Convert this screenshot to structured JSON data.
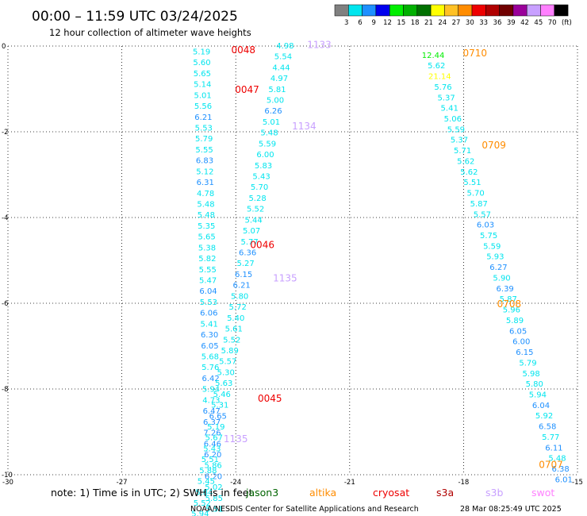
{
  "header": {
    "title": "00:00 – 11:59 UTC 03/24/2025",
    "subtitle": "12 hour collection of altimeter wave heights"
  },
  "legend": {
    "swatches": [
      {
        "label": "3",
        "color": "#808080"
      },
      {
        "label": "6",
        "color": "#00e5ee"
      },
      {
        "label": "9",
        "color": "#1e90ff"
      },
      {
        "label": "12",
        "color": "#0000ee"
      },
      {
        "label": "15",
        "color": "#00ee00"
      },
      {
        "label": "18",
        "color": "#00b000"
      },
      {
        "label": "21",
        "color": "#007000"
      },
      {
        "label": "24",
        "color": "#ffff00"
      },
      {
        "label": "27",
        "color": "#ffc125"
      },
      {
        "label": "30",
        "color": "#ff8c00"
      },
      {
        "label": "33",
        "color": "#ee0000"
      },
      {
        "label": "36",
        "color": "#b00000"
      },
      {
        "label": "39",
        "color": "#700000"
      },
      {
        "label": "42",
        "color": "#9a009a"
      },
      {
        "label": "45",
        "color": "#c8a0ff"
      },
      {
        "label": "70",
        "color": "#ff80ff"
      },
      {
        "label": "",
        "color": "#000000"
      }
    ],
    "unit": "(ft)"
  },
  "footer": {
    "note": "note:  1) Time is in UTC; 2) SWH is in feet",
    "missions": [
      {
        "label": "jason3",
        "color": "#006400"
      },
      {
        "label": "altika",
        "color": "#ff8c00"
      },
      {
        "label": "cryosat",
        "color": "#ee0000"
      },
      {
        "label": "s3a",
        "color": "#b00000"
      },
      {
        "label": "s3b",
        "color": "#c8a0ff"
      },
      {
        "label": "swot",
        "color": "#ff80ff"
      }
    ],
    "credit": "NOAA/NESDIS Center for Satellite Applications and Research",
    "timestamp": "28 Mar 08:25:49 UTC 2025"
  },
  "chart_data": {
    "type": "scatter",
    "title": "00:00 – 11:59 UTC 03/24/2025",
    "subtitle": "12 hour collection of altimeter wave heights",
    "xlabel": "",
    "ylabel": "",
    "xlim": [
      -30,
      -15
    ],
    "ylim": [
      -10,
      0
    ],
    "x_ticks": [
      "-30",
      "-27",
      "-24",
      "-21",
      "-18",
      "-15"
    ],
    "y_ticks": [
      "0",
      "-2",
      "-4",
      "-6",
      "-8",
      "-10"
    ],
    "grid": true,
    "labels": [
      {
        "x": -23.8,
        "y": -0.07,
        "text": "0048",
        "color": "#ee0000",
        "kind": "time"
      },
      {
        "x": -23.7,
        "y": -1.0,
        "text": "0047",
        "color": "#ee0000",
        "kind": "time"
      },
      {
        "x": -23.3,
        "y": -4.62,
        "text": "0046",
        "color": "#ee0000",
        "kind": "time"
      },
      {
        "x": -23.1,
        "y": -8.2,
        "text": "0045",
        "color": "#ee0000",
        "kind": "time"
      },
      {
        "x": -21.8,
        "y": 0.05,
        "text": "1133",
        "color": "#c8a0ff",
        "kind": "time"
      },
      {
        "x": -22.2,
        "y": -1.85,
        "text": "1134",
        "color": "#c8a0ff",
        "kind": "time"
      },
      {
        "x": -22.7,
        "y": -5.4,
        "text": "1135",
        "color": "#c8a0ff",
        "kind": "time"
      },
      {
        "x": -24.0,
        "y": -9.15,
        "text": "1135",
        "color": "#c8a0ff",
        "kind": "time"
      },
      {
        "x": -17.7,
        "y": -0.15,
        "text": "0710",
        "color": "#ff8c00",
        "kind": "time"
      },
      {
        "x": -17.2,
        "y": -2.3,
        "text": "0709",
        "color": "#ff8c00",
        "kind": "time"
      },
      {
        "x": -16.8,
        "y": -6.0,
        "text": "0708",
        "color": "#ff8c00",
        "kind": "time"
      },
      {
        "x": -15.7,
        "y": -9.75,
        "text": "0707",
        "color": "#ff8c00",
        "kind": "time"
      }
    ],
    "series": [
      {
        "name": "0048",
        "start": [
          -24.9,
          -0.12
        ],
        "step": [
          0.008,
          -0.254
        ],
        "values": [
          "5.19",
          "5.60",
          "5.65",
          "5.14",
          "5.01",
          "5.56",
          "6.21",
          "5.53",
          "5.79",
          "5.55",
          "6.83",
          "5.12",
          "6.31",
          "4.78",
          "5.48",
          "5.48",
          "5.35",
          "5.65",
          "5.38",
          "5.82",
          "5.55",
          "5.47",
          "6.04",
          "5.53",
          "6.06",
          "5.41",
          "6.30",
          "6.05",
          "5.68",
          "5.76",
          "6.42",
          "5.94",
          "4.73",
          "6.47",
          "6.37",
          "7.26",
          "6.46",
          "6.20",
          "5.86",
          "6.20",
          "5.02",
          "5.85",
          "5.51",
          "6.02"
        ],
        "colors": {
          "6.83": "#1e90ff",
          "6.31": "#1e90ff",
          "6.21": "#1e90ff",
          "6.47": "#1e90ff",
          "6.37": "#1e90ff",
          "7.26": "#1e90ff",
          "6.46": "#1e90ff",
          "6.20": "#1e90ff",
          "6.02": "#1e90ff",
          "6.42": "#1e90ff",
          "6.30": "#1e90ff",
          "6.06": "#1e90ff",
          "6.04": "#1e90ff",
          "6.05": "#1e90ff"
        }
      },
      {
        "name": "1133",
        "start": [
          -22.7,
          0.02
        ],
        "step": [
          -0.052,
          -0.254
        ],
        "values": [
          "4.98",
          "5.54",
          "4.44",
          "4.97",
          "5.81",
          "5.00",
          "6.26",
          "5.01",
          "5.48",
          "5.59",
          "6.00",
          "5.83",
          "5.43",
          "5.70",
          "5.28",
          "5.52",
          "5.44",
          "5.07",
          "5.77",
          "6.36",
          "5.27",
          "6.15",
          "6.21",
          "5.80",
          "5.72",
          "5.40",
          "5.61",
          "5.52",
          "5.89",
          "5.57",
          "5.30",
          "5.63",
          "5.46",
          "5.31",
          "6.65",
          "5.19",
          "5.67",
          "5.43",
          "5.51",
          "5.88",
          "5.45",
          "5.84",
          "5.52",
          "5.94"
        ],
        "colors": {
          "6.26": "#1e90ff",
          "6.36": "#1e90ff",
          "6.65": "#1e90ff",
          "6.15": "#1e90ff",
          "6.21": "#1e90ff"
        }
      },
      {
        "name": "0710",
        "start": [
          -18.8,
          -0.2
        ],
        "step": [
          0.086,
          -0.2475
        ],
        "values": [
          "12.44",
          "5.62",
          "21.14",
          "5.76",
          "5.37",
          "5.41",
          "5.06",
          "5.59",
          "5.37",
          "5.71",
          "5.62",
          "5.62",
          "5.51",
          "5.70",
          "5.87",
          "5.57",
          "6.03",
          "5.75",
          "5.59",
          "5.93",
          "6.27",
          "5.90",
          "6.39",
          "5.87",
          "5.96",
          "5.89",
          "6.05",
          "6.00",
          "6.15",
          "5.79",
          "5.98",
          "5.80",
          "5.94",
          "6.04",
          "5.92",
          "6.58",
          "5.77",
          "6.11",
          "5.48",
          "6.38",
          "6.01"
        ],
        "colors": {
          "12.44": "#00ee00",
          "21.14": "#ffff00",
          "6.03": "#1e90ff",
          "6.27": "#1e90ff",
          "6.39": "#1e90ff",
          "6.05": "#1e90ff",
          "6.00": "#1e90ff",
          "6.15": "#1e90ff",
          "6.04": "#1e90ff",
          "6.58": "#1e90ff",
          "6.11": "#1e90ff",
          "6.38": "#1e90ff",
          "6.01": "#1e90ff"
        }
      }
    ]
  }
}
